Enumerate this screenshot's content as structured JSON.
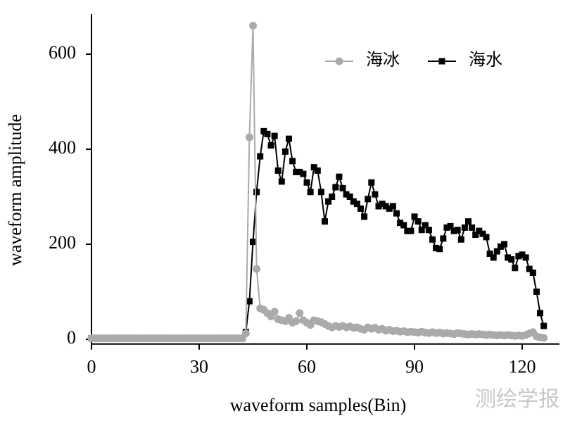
{
  "chart_data": {
    "type": "line",
    "xlabel": "waveform samples(Bin)",
    "ylabel": "waveform amplitude",
    "watermark": "测绘学报",
    "x": [
      0,
      1,
      2,
      3,
      4,
      5,
      6,
      7,
      8,
      9,
      10,
      11,
      12,
      13,
      14,
      15,
      16,
      17,
      18,
      19,
      20,
      21,
      22,
      23,
      24,
      25,
      26,
      27,
      28,
      29,
      30,
      31,
      32,
      33,
      34,
      35,
      36,
      37,
      38,
      39,
      40,
      41,
      42,
      43,
      44,
      45,
      46,
      47,
      48,
      49,
      50,
      51,
      52,
      53,
      54,
      55,
      56,
      57,
      58,
      59,
      60,
      61,
      62,
      63,
      64,
      65,
      66,
      67,
      68,
      69,
      70,
      71,
      72,
      73,
      74,
      75,
      76,
      77,
      78,
      79,
      80,
      81,
      82,
      83,
      84,
      85,
      86,
      87,
      88,
      89,
      90,
      91,
      92,
      93,
      94,
      95,
      96,
      97,
      98,
      99,
      100,
      101,
      102,
      103,
      104,
      105,
      106,
      107,
      108,
      109,
      110,
      111,
      112,
      113,
      114,
      115,
      116,
      117,
      118,
      119,
      120,
      121,
      122,
      123,
      124,
      125,
      126
    ],
    "series": [
      {
        "name": "海水",
        "color": "#000000",
        "marker": "square",
        "values": [
          2,
          2,
          2,
          2,
          2,
          2,
          2,
          2,
          2,
          2,
          2,
          2,
          2,
          2,
          2,
          2,
          2,
          2,
          2,
          2,
          2,
          2,
          2,
          2,
          2,
          2,
          2,
          2,
          2,
          2,
          2,
          2,
          2,
          2,
          2,
          2,
          2,
          2,
          2,
          2,
          2,
          2,
          2,
          15,
          80,
          205,
          310,
          385,
          438,
          432,
          408,
          428,
          355,
          332,
          395,
          422,
          375,
          352,
          352,
          348,
          330,
          310,
          362,
          355,
          310,
          248,
          290,
          300,
          320,
          342,
          318,
          305,
          300,
          290,
          285,
          275,
          258,
          295,
          330,
          305,
          280,
          285,
          280,
          275,
          280,
          265,
          245,
          240,
          228,
          228,
          258,
          248,
          230,
          240,
          230,
          210,
          192,
          190,
          212,
          235,
          238,
          228,
          230,
          210,
          235,
          248,
          235,
          220,
          228,
          222,
          215,
          180,
          172,
          185,
          195,
          200,
          172,
          168,
          150,
          175,
          178,
          172,
          148,
          140,
          100,
          55,
          28
        ]
      },
      {
        "name": "海冰",
        "color": "#aaaaaa",
        "marker": "circle",
        "values": [
          2,
          2,
          2,
          2,
          2,
          2,
          2,
          2,
          2,
          2,
          2,
          2,
          2,
          2,
          2,
          2,
          2,
          2,
          2,
          2,
          2,
          2,
          2,
          2,
          2,
          2,
          2,
          2,
          2,
          2,
          2,
          2,
          2,
          2,
          2,
          2,
          2,
          2,
          2,
          2,
          2,
          2,
          2,
          12,
          425,
          660,
          148,
          65,
          62,
          55,
          48,
          58,
          42,
          40,
          38,
          45,
          35,
          38,
          55,
          40,
          35,
          30,
          40,
          38,
          36,
          32,
          28,
          25,
          28,
          26,
          28,
          25,
          27,
          24,
          25,
          22,
          20,
          25,
          22,
          24,
          20,
          22,
          18,
          20,
          17,
          18,
          16,
          17,
          15,
          16,
          15,
          14,
          16,
          14,
          13,
          15,
          13,
          14,
          12,
          13,
          12,
          11,
          13,
          12,
          11,
          10,
          11,
          10,
          11,
          10,
          9,
          10,
          9,
          8,
          9,
          8,
          9,
          8,
          7,
          8,
          7,
          9,
          12,
          15,
          6,
          4,
          3
        ]
      }
    ],
    "xlim": [
      0,
      130
    ],
    "xticks": [
      0,
      30,
      60,
      90,
      120
    ],
    "ylim": [
      -10,
      680
    ],
    "yticks": [
      0,
      200,
      400,
      600
    ],
    "grid": false,
    "legend": "upper right"
  }
}
